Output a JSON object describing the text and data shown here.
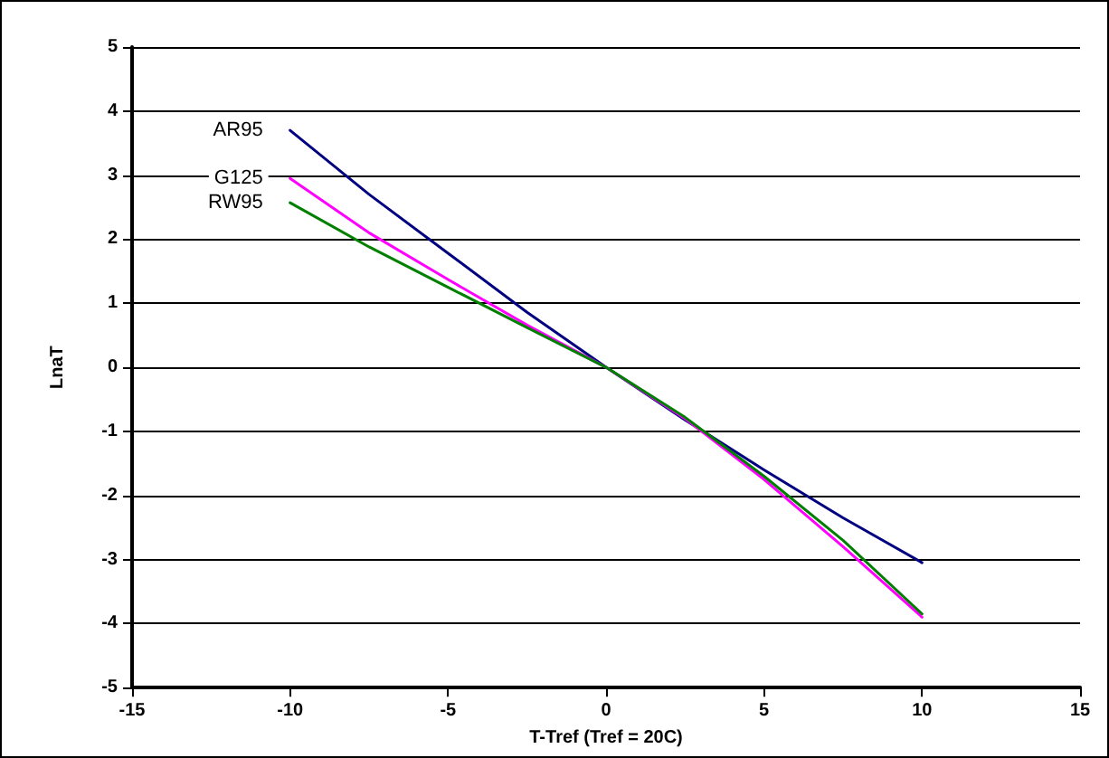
{
  "chart_data": {
    "type": "line",
    "xlabel": "T-Tref (Tref = 20C)",
    "ylabel": "LnaT",
    "x": [
      -10,
      -7.5,
      -5,
      -2.5,
      0,
      2.5,
      5,
      7.5,
      10
    ],
    "series": [
      {
        "name": "AR95",
        "color": "#000080",
        "values": [
          3.7,
          2.7,
          1.78,
          0.86,
          0,
          -0.82,
          -1.6,
          -2.35,
          -3.05
        ]
      },
      {
        "name": "G125",
        "color": "#ff00ff",
        "values": [
          2.95,
          2.1,
          1.37,
          0.66,
          0,
          -0.8,
          -1.75,
          -2.8,
          -3.9
        ]
      },
      {
        "name": "RW95",
        "color": "#008000",
        "values": [
          2.57,
          1.88,
          1.25,
          0.62,
          0,
          -0.78,
          -1.7,
          -2.7,
          -3.85
        ]
      }
    ],
    "xlim": [
      -15,
      15
    ],
    "xticks": [
      -15,
      -10,
      -5,
      0,
      5,
      10,
      15
    ],
    "ylim": [
      -5,
      5
    ],
    "yticks": [
      -5,
      -4,
      -3,
      -2,
      -1,
      0,
      1,
      2,
      3,
      4,
      5
    ],
    "grid": "y",
    "legend": false,
    "line_style": "solid"
  }
}
